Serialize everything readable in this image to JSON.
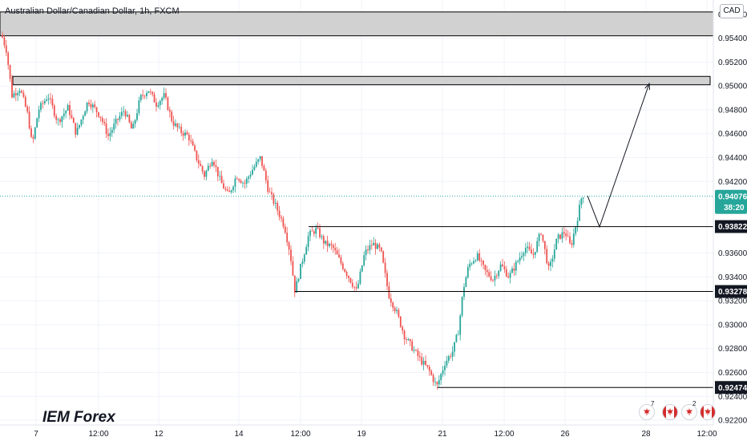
{
  "header": {
    "title": "Australian Dollar/Canadian Dollar, 1h, FXCM",
    "currency": "CAD"
  },
  "brand": "IEM Forex",
  "price_tag": {
    "price": "0.94076",
    "countdown": "38:20"
  },
  "events": [
    {
      "count": "7"
    },
    {
      "count": ""
    },
    {
      "count": "2"
    },
    {
      "count": ""
    }
  ],
  "colors": {
    "up": "#26a69a",
    "down": "#ef5350",
    "zone_fill": "#d1d1d1",
    "level_line": "#000000",
    "last_price": "#26a69a"
  },
  "chart_data": {
    "type": "candlestick",
    "title": "Australian Dollar/Canadian Dollar, 1h, FXCM",
    "y_axis": {
      "position": "right",
      "ylim": [
        0.9216,
        0.9572
      ],
      "ticks": [
        0.956,
        0.954,
        0.952,
        0.95,
        0.948,
        0.946,
        0.944,
        0.942,
        0.936,
        0.934,
        0.932,
        0.93,
        0.928,
        0.926,
        0.924,
        0.922
      ],
      "tick_labels": [
        "0.95600",
        "0.95400",
        "0.95200",
        "0.95000",
        "0.94800",
        "0.94600",
        "0.94400",
        "0.94200",
        "0.93600",
        "0.93400",
        "0.93200",
        "0.93000",
        "0.92800",
        "0.92600",
        "0.92400",
        "0.92200"
      ]
    },
    "x_axis": {
      "tick_labels": [
        "7",
        "12:00",
        "12",
        "14",
        "12:00",
        "19",
        "21",
        "12:00",
        "26",
        "28",
        "12:00"
      ]
    },
    "series_path": [
      [
        0,
        0.9547
      ],
      [
        8,
        0.953
      ],
      [
        15,
        0.9492
      ],
      [
        25,
        0.9498
      ],
      [
        35,
        0.9475
      ],
      [
        40,
        0.945
      ],
      [
        48,
        0.948
      ],
      [
        60,
        0.9492
      ],
      [
        72,
        0.947
      ],
      [
        85,
        0.9482
      ],
      [
        95,
        0.946
      ],
      [
        110,
        0.9488
      ],
      [
        125,
        0.9475
      ],
      [
        135,
        0.9458
      ],
      [
        145,
        0.947
      ],
      [
        155,
        0.948
      ],
      [
        165,
        0.9462
      ],
      [
        175,
        0.949
      ],
      [
        185,
        0.9497
      ],
      [
        195,
        0.9485
      ],
      [
        205,
        0.9492
      ],
      [
        215,
        0.947
      ],
      [
        225,
        0.9462
      ],
      [
        235,
        0.9458
      ],
      [
        245,
        0.944
      ],
      [
        255,
        0.9425
      ],
      [
        265,
        0.944
      ],
      [
        275,
        0.942
      ],
      [
        285,
        0.9408
      ],
      [
        295,
        0.9425
      ],
      [
        305,
        0.9418
      ],
      [
        315,
        0.943
      ],
      [
        325,
        0.944
      ],
      [
        335,
        0.9412
      ],
      [
        345,
        0.9398
      ],
      [
        355,
        0.9382
      ],
      [
        362,
        0.936
      ],
      [
        368,
        0.9328
      ],
      [
        375,
        0.9348
      ],
      [
        385,
        0.9375
      ],
      [
        395,
        0.938
      ],
      [
        405,
        0.9368
      ],
      [
        415,
        0.9365
      ],
      [
        425,
        0.9352
      ],
      [
        435,
        0.934
      ],
      [
        445,
        0.9328
      ],
      [
        455,
        0.936
      ],
      [
        465,
        0.9368
      ],
      [
        475,
        0.9362
      ],
      [
        485,
        0.9325
      ],
      [
        495,
        0.931
      ],
      [
        505,
        0.929
      ],
      [
        515,
        0.928
      ],
      [
        525,
        0.927
      ],
      [
        535,
        0.9262
      ],
      [
        545,
        0.9248
      ],
      [
        555,
        0.9268
      ],
      [
        565,
        0.9278
      ],
      [
        572,
        0.9295
      ],
      [
        578,
        0.933
      ],
      [
        585,
        0.935
      ],
      [
        595,
        0.9358
      ],
      [
        605,
        0.9345
      ],
      [
        615,
        0.9338
      ],
      [
        625,
        0.935
      ],
      [
        635,
        0.934
      ],
      [
        645,
        0.9352
      ],
      [
        655,
        0.9365
      ],
      [
        665,
        0.9358
      ],
      [
        675,
        0.9378
      ],
      [
        685,
        0.9345
      ],
      [
        695,
        0.9372
      ],
      [
        705,
        0.9378
      ],
      [
        712,
        0.9365
      ],
      [
        720,
        0.9388
      ],
      [
        726,
        0.9408
      ],
      [
        730,
        0.941
      ]
    ],
    "zones": [
      {
        "top": 0.9562,
        "bottom": 0.9542
      },
      {
        "top": 0.9508,
        "bottom": 0.9501
      }
    ],
    "levels": [
      {
        "value": 0.93822,
        "label": "0.93822"
      },
      {
        "value": 0.93278,
        "label": "0.93278"
      },
      {
        "value": 0.92474,
        "label": "0.92474"
      }
    ],
    "last_price": 0.94076,
    "projection": [
      [
        733,
        0.9408
      ],
      [
        748,
        0.9382
      ],
      [
        810,
        0.9502
      ]
    ]
  }
}
